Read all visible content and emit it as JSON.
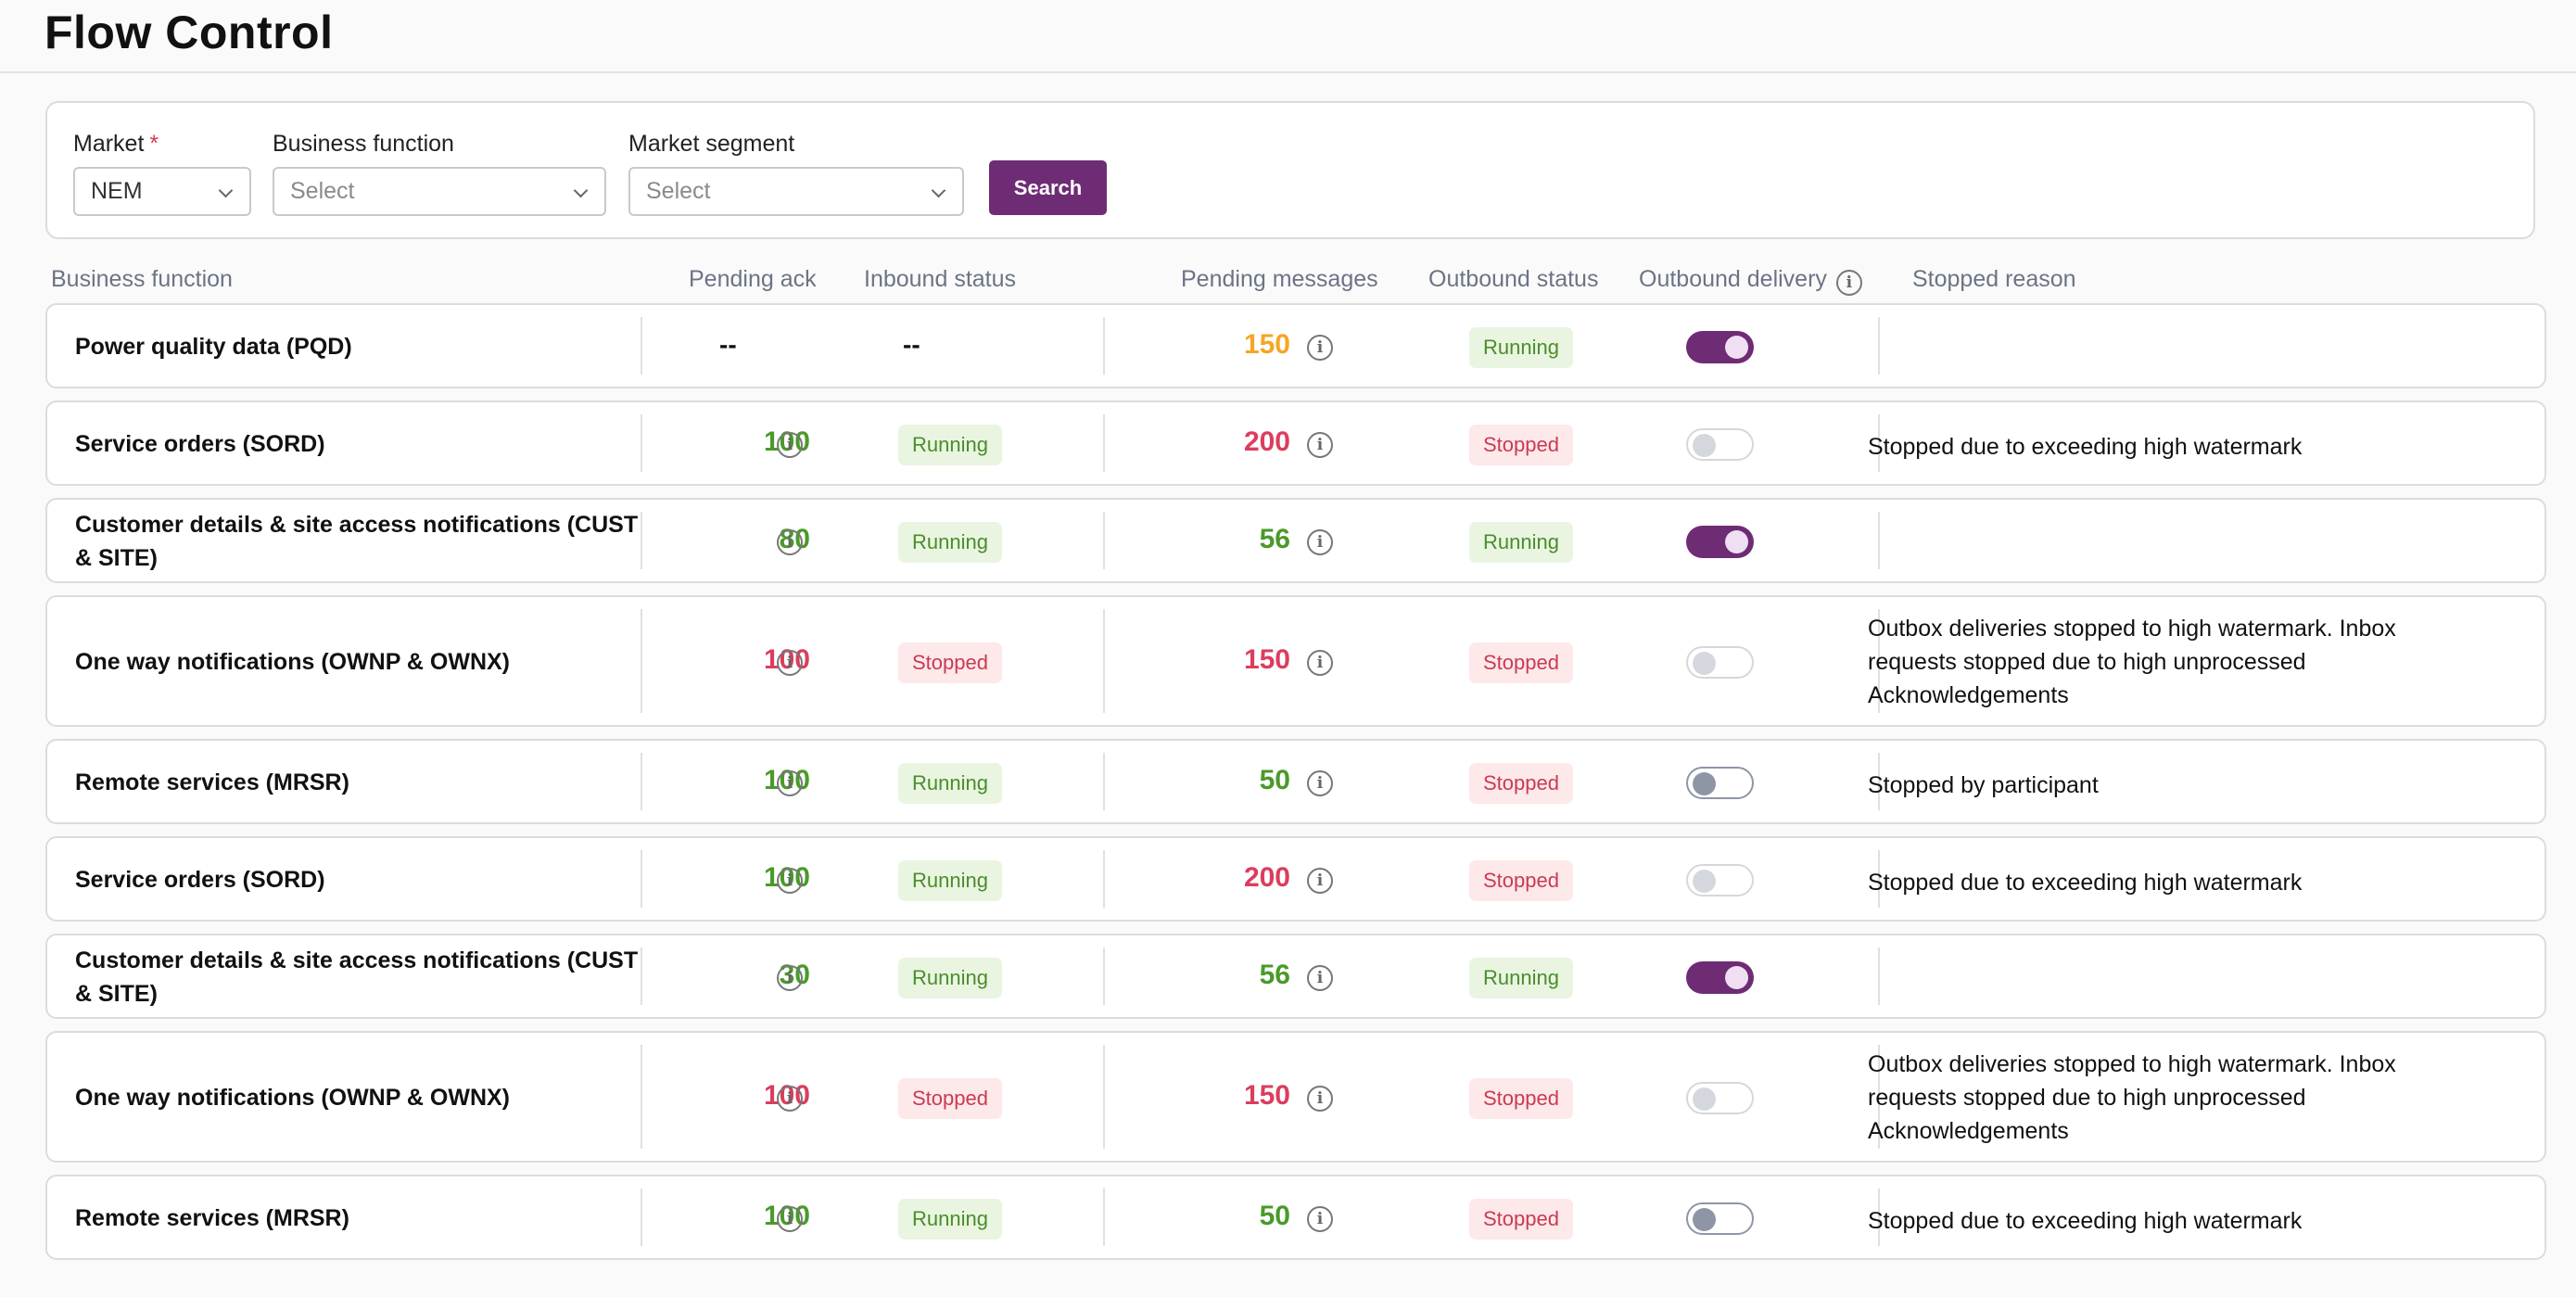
{
  "page": {
    "title": "Flow Control"
  },
  "filters": {
    "market": {
      "label": "Market",
      "required_mark": "*",
      "value": "NEM"
    },
    "business_function": {
      "label": "Business function",
      "placeholder": "Select"
    },
    "market_segment": {
      "label": "Market segment",
      "placeholder": "Select"
    },
    "search_label": "Search"
  },
  "table": {
    "headers": {
      "business_function": "Business function",
      "pending_ack": "Pending ack",
      "inbound_status": "Inbound status",
      "pending_messages": "Pending messages",
      "outbound_status": "Outbound status",
      "outbound_delivery": "Outbound delivery",
      "stopped_reason": "Stopped reason"
    },
    "rows": [
      {
        "name": "Power quality data (PQD)",
        "pending_ack": "--",
        "inbound_status": "--",
        "pending_messages": "150",
        "outbound_status": "Running",
        "outbound_delivery": "on",
        "stopped_reason": ""
      },
      {
        "name": "Service orders (SORD)",
        "pending_ack": "100",
        "inbound_status": "Running",
        "pending_messages": "200",
        "outbound_status": "Stopped",
        "outbound_delivery": "off",
        "stopped_reason": "Stopped due to exceeding high watermark"
      },
      {
        "name": "Customer details & site access notifications (CUST & SITE)",
        "pending_ack": "80",
        "inbound_status": "Running",
        "pending_messages": "56",
        "outbound_status": "Running",
        "outbound_delivery": "on",
        "stopped_reason": ""
      },
      {
        "name": "One way notifications (OWNP & OWNX)",
        "pending_ack": "100",
        "inbound_status": "Stopped",
        "pending_messages": "150",
        "outbound_status": "Stopped",
        "outbound_delivery": "off",
        "stopped_reason": "Outbox deliveries stopped to high watermark. Inbox requests stopped due to high unprocessed Acknowledgements"
      },
      {
        "name": "Remote services (MRSR)",
        "pending_ack": "100",
        "inbound_status": "Running",
        "pending_messages": "50",
        "outbound_status": "Stopped",
        "outbound_delivery": "off",
        "stopped_reason": "Stopped by participant"
      },
      {
        "name": "Service orders (SORD)",
        "pending_ack": "100",
        "inbound_status": "Running",
        "pending_messages": "200",
        "outbound_status": "Stopped",
        "outbound_delivery": "off",
        "stopped_reason": "Stopped due to exceeding high watermark"
      },
      {
        "name": "Customer details & site access notifications (CUST & SITE)",
        "pending_ack": "30",
        "inbound_status": "Running",
        "pending_messages": "56",
        "outbound_status": "Running",
        "outbound_delivery": "on",
        "stopped_reason": ""
      },
      {
        "name": "One way notifications (OWNP & OWNX)",
        "pending_ack": "100",
        "inbound_status": "Stopped",
        "pending_messages": "150",
        "outbound_status": "Stopped",
        "outbound_delivery": "off",
        "stopped_reason": "Outbox deliveries stopped to high watermark. Inbox requests stopped due to high unprocessed Acknowledgements"
      },
      {
        "name": "Remote services (MRSR)",
        "pending_ack": "100",
        "inbound_status": "Running",
        "pending_messages": "50",
        "outbound_status": "Stopped",
        "outbound_delivery": "off",
        "stopped_reason": "Stopped due to exceeding high watermark"
      }
    ]
  },
  "colors": {
    "accent": "#6e2c75",
    "green": "#4a9a2a",
    "red": "#dc3d5e",
    "amber": "#f5a623"
  }
}
